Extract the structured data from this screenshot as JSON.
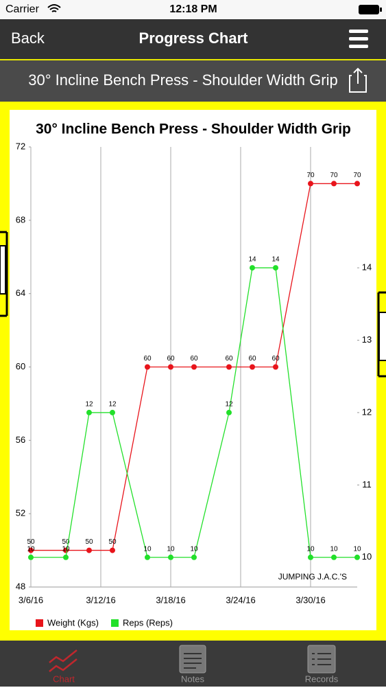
{
  "status_bar": {
    "carrier": "Carrier",
    "time": "12:18 PM"
  },
  "nav_bar": {
    "back": "Back",
    "title": "Progress Chart"
  },
  "exercise_bar": {
    "title": "30° Incline Bench Press - Shoulder Width Grip"
  },
  "chart_data": {
    "type": "line",
    "title": "30° Incline Bench Press - Shoulder Width Grip",
    "x": [
      "2016-03-06",
      "2016-03-09",
      "2016-03-11",
      "2016-03-13",
      "2016-03-16",
      "2016-03-18",
      "2016-03-20",
      "2016-03-23",
      "2016-03-25",
      "2016-03-27",
      "2016-03-30",
      "2016-04-01",
      "2016-04-03"
    ],
    "xlim": [
      "2016-03-06",
      "2016-04-03"
    ],
    "xticks": [
      {
        "value": "2016-03-06",
        "label": "3/6/16"
      },
      {
        "value": "2016-03-12",
        "label": "3/12/16"
      },
      {
        "value": "2016-03-18",
        "label": "3/18/16"
      },
      {
        "value": "2016-03-24",
        "label": "3/24/16"
      },
      {
        "value": "2016-03-30",
        "label": "3/30/16"
      }
    ],
    "ylim": [
      48,
      72
    ],
    "yticks": [
      48,
      52,
      56,
      60,
      64,
      68,
      72
    ],
    "y2lim": [
      9.59,
      15.67
    ],
    "y2ticks": [
      10,
      11,
      12,
      13,
      14
    ],
    "grid": true,
    "series": [
      {
        "name": "Weight (Kgs)",
        "color": "#e8141b",
        "values": [
          50,
          50,
          50,
          50,
          60,
          60,
          60,
          60,
          60,
          60,
          70,
          70,
          70
        ]
      },
      {
        "name": "Reps (Reps)",
        "color": "#22e02a",
        "axis": "y2",
        "values": [
          10,
          10,
          12,
          12,
          10,
          10,
          10,
          12,
          14,
          14,
          10,
          10,
          10
        ]
      }
    ],
    "watermark": "JUMPING J.A.C.'S",
    "legend": "bottom-left"
  },
  "tab_bar": {
    "tabs": [
      "Chart",
      "Notes",
      "Records"
    ]
  }
}
